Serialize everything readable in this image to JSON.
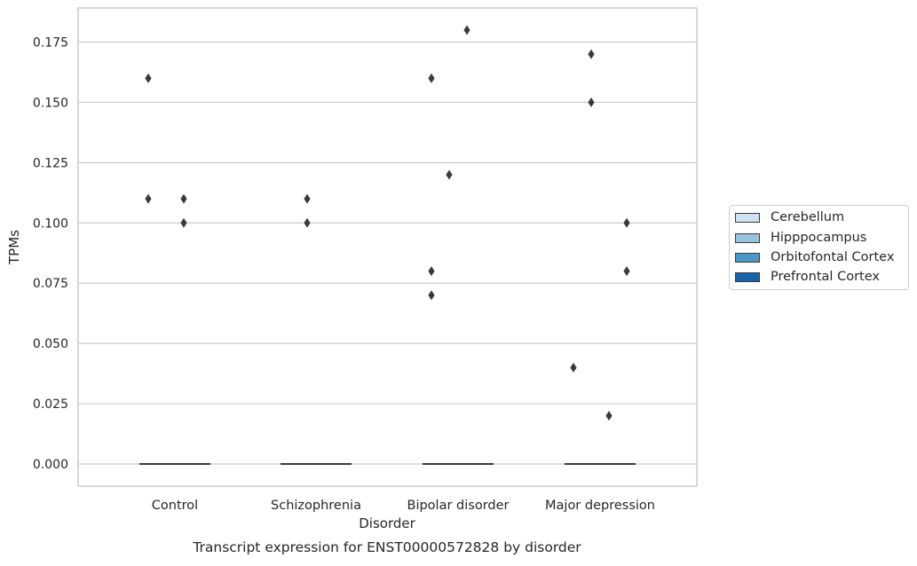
{
  "chart_data": {
    "type": "box",
    "title": "",
    "caption": "Transcript expression for ENST00000572828 by disorder",
    "xlabel": "Disorder",
    "ylabel": "TPMs",
    "categories": [
      "Control",
      "Schizophrenia",
      "Bipolar disorder",
      "Major depression"
    ],
    "ylim": [
      -0.009,
      0.19
    ],
    "yticks": [
      "0.000",
      "0.025",
      "0.050",
      "0.075",
      "0.100",
      "0.125",
      "0.150",
      "0.175"
    ],
    "grid": true,
    "legend_position": "right",
    "series": [
      {
        "name": "Cerebellum",
        "color": "#d0e1f2",
        "median": [
          0,
          0,
          0,
          0
        ],
        "outliers": [
          [
            0.16,
            0.11
          ],
          [],
          [
            0.16,
            0.08,
            0.07
          ],
          [
            0.04
          ]
        ]
      },
      {
        "name": "Hipppocampus",
        "color": "#94c4df",
        "median": [
          0,
          0,
          0,
          0
        ],
        "outliers": [
          [],
          [
            0.11,
            0.1
          ],
          [
            0.12
          ],
          [
            0.17,
            0.15
          ]
        ]
      },
      {
        "name": "Orbitofontal Cortex",
        "color": "#4a98c9",
        "median": [
          0,
          0,
          0,
          0
        ],
        "outliers": [
          [
            0.11,
            0.1
          ],
          [],
          [
            0.18
          ],
          [
            0.02
          ]
        ]
      },
      {
        "name": "Prefrontal Cortex",
        "color": "#1764ab",
        "median": [
          0,
          0,
          0,
          0
        ],
        "outliers": [
          [],
          [],
          [],
          [
            0.1,
            0.08
          ]
        ]
      }
    ]
  }
}
